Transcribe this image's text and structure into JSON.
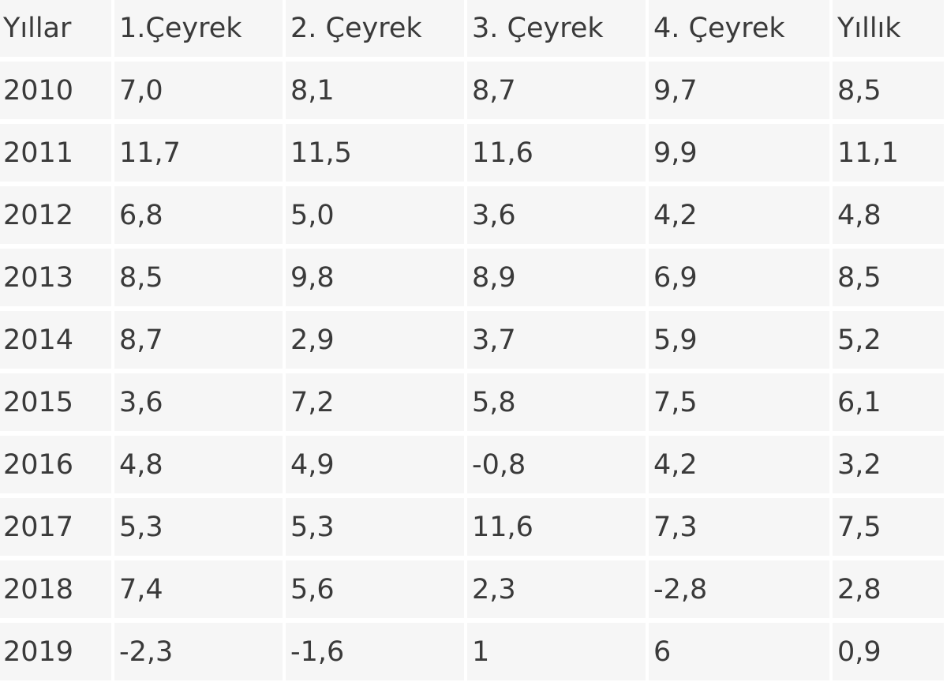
{
  "chart_data": {
    "type": "table",
    "columns": [
      "Yıllar",
      "1.Çeyrek",
      "2. Çeyrek",
      "3. Çeyrek",
      "4. Çeyrek",
      "Yıllık"
    ],
    "rows": [
      [
        "2010",
        "7,0",
        "8,1",
        "8,7",
        "9,7",
        "8,5"
      ],
      [
        "2011",
        "11,7",
        "11,5",
        "11,6",
        "9,9",
        "11,1"
      ],
      [
        "2012",
        "6,8",
        "5,0",
        "3,6",
        "4,2",
        "4,8"
      ],
      [
        "2013",
        "8,5",
        "9,8",
        "8,9",
        "6,9",
        "8,5"
      ],
      [
        "2014",
        "8,7",
        "2,9",
        "3,7",
        "5,9",
        "5,2"
      ],
      [
        "2015",
        "3,6",
        "7,2",
        "5,8",
        "7,5",
        "6,1"
      ],
      [
        "2016",
        "4,8",
        "4,9",
        "-0,8",
        "4,2",
        "3,2"
      ],
      [
        "2017",
        "5,3",
        "5,3",
        "11,6",
        "7,3",
        "7,5"
      ],
      [
        "2018",
        "7,4",
        "5,6",
        "2,3",
        "-2,8",
        "2,8"
      ],
      [
        "2019",
        " -2,3",
        "-1,6",
        " 1",
        "6",
        " 0,9"
      ]
    ]
  }
}
